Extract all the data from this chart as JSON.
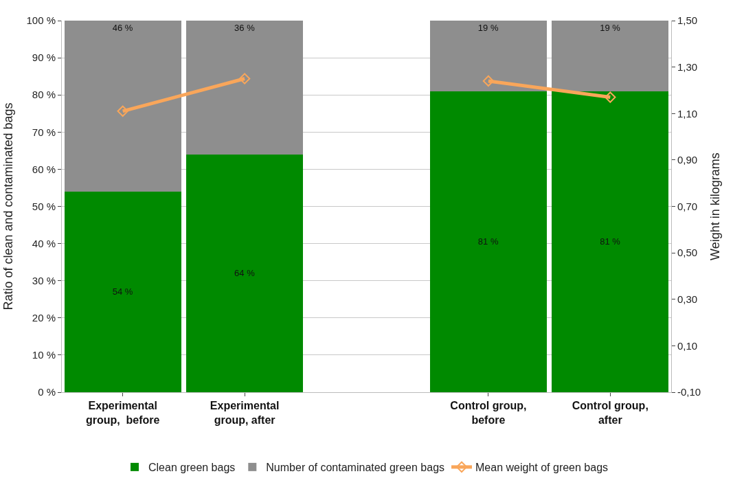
{
  "chart_data": {
    "type": "bar",
    "stacked": true,
    "categories": [
      "Experimental\ngroup,  before",
      "Experimental\ngroup, after",
      null,
      "Control group,\nbefore",
      "Control group,\nafter"
    ],
    "series": [
      {
        "name": "Clean green bags",
        "color": "#008a00",
        "values": [
          54,
          64,
          null,
          81,
          81
        ],
        "value_labels": [
          "54 %",
          "64 %",
          null,
          "81 %",
          "81 %"
        ]
      },
      {
        "name": "Number of contaminated green bags",
        "color": "#8e8e8e",
        "values": [
          46,
          36,
          null,
          19,
          19
        ],
        "value_labels": [
          "46 %",
          "36 %",
          null,
          "19 %",
          "19 %"
        ]
      },
      {
        "name": "Mean weight of green bags",
        "type": "line",
        "axis": "y2",
        "color": "#f9a65a",
        "values": [
          1.11,
          1.25,
          null,
          1.24,
          1.17
        ],
        "marker": "diamond"
      }
    ],
    "ylabel": "Ratio of clean and contaminated bags",
    "y2label": "Weight in kilograms",
    "ylim": [
      0,
      100
    ],
    "yticks": [
      {
        "value": 0,
        "label": "0 %"
      },
      {
        "value": 10,
        "label": "10 %"
      },
      {
        "value": 20,
        "label": "20 %"
      },
      {
        "value": 30,
        "label": "30 %"
      },
      {
        "value": 40,
        "label": "40 %"
      },
      {
        "value": 50,
        "label": "50 %"
      },
      {
        "value": 60,
        "label": "60 %"
      },
      {
        "value": 70,
        "label": "70 %"
      },
      {
        "value": 80,
        "label": "80 %"
      },
      {
        "value": 90,
        "label": "90 %"
      },
      {
        "value": 100,
        "label": "100 %"
      }
    ],
    "y2lim": [
      -0.1,
      1.5
    ],
    "y2ticks": [
      {
        "value": -0.1,
        "label": "-0,10"
      },
      {
        "value": 0.1,
        "label": "0,10"
      },
      {
        "value": 0.3,
        "label": "0,30"
      },
      {
        "value": 0.5,
        "label": "0,50"
      },
      {
        "value": 0.7,
        "label": "0,70"
      },
      {
        "value": 0.9,
        "label": "0,90"
      },
      {
        "value": 1.1,
        "label": "1,10"
      },
      {
        "value": 1.3,
        "label": "1,30"
      },
      {
        "value": 1.5,
        "label": "1,50"
      }
    ],
    "grid": "y",
    "legend": "bottom"
  }
}
